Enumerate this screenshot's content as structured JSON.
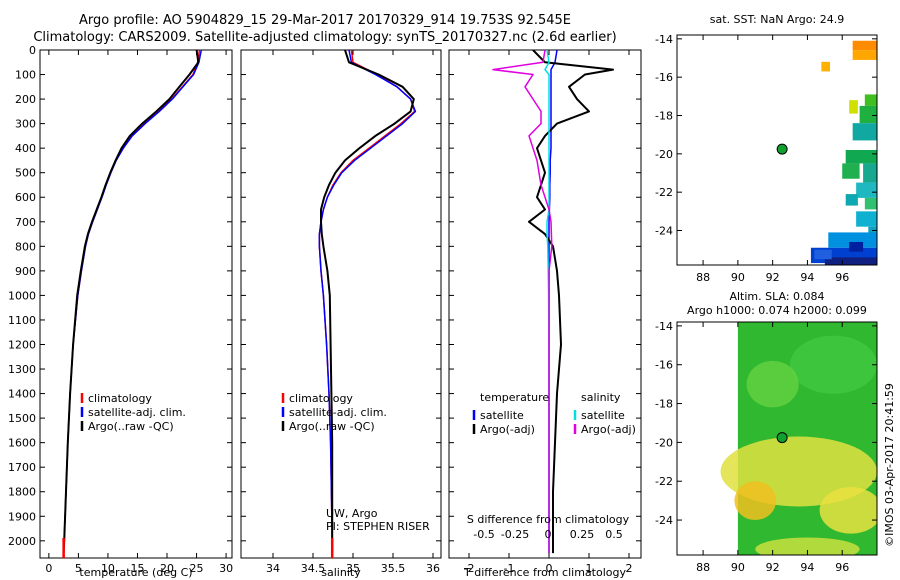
{
  "header": {
    "line1": "Argo profile: AO 5904829_15 29-Mar-2017 20170329_914 19.753S 92.545E",
    "line2": "Climatology: CARS2009. Satellite-adjusted climatology: synTS_20170327.nc (2.6d earlier)"
  },
  "colors": {
    "climatology": "#ff0000",
    "satellite": "#0000ff",
    "argo": "#000000",
    "salinity_sat": "#00e0e0",
    "salinity_argo": "#e000e0"
  },
  "chart_data": [
    {
      "type": "line",
      "xlabel": "temperature (deg C)",
      "xlim": [
        -1.5,
        31
      ],
      "xticks": [
        0,
        5,
        10,
        15,
        20,
        25,
        30
      ],
      "ylim": [
        0,
        2070
      ],
      "yticks": [
        0,
        100,
        200,
        300,
        400,
        500,
        600,
        700,
        800,
        900,
        1000,
        1100,
        1200,
        1300,
        1400,
        1500,
        1600,
        1700,
        1800,
        1900,
        2000
      ],
      "legend": [
        "climatology",
        "satellite-adj. clim.",
        "Argo(..raw -QC)"
      ],
      "depth": [
        0,
        50,
        100,
        150,
        200,
        250,
        300,
        350,
        400,
        450,
        500,
        550,
        600,
        650,
        700,
        750,
        800,
        900,
        1000,
        1200,
        1400,
        1600,
        1800,
        2000,
        2050
      ],
      "series": [
        {
          "name": "climatology",
          "color": "#ff0000",
          "values": [
            25.5,
            25.2,
            24.4,
            22.6,
            20.8,
            18.6,
            16.2,
            14.0,
            12.5,
            11.3,
            10.4,
            9.6,
            8.9,
            8.2,
            7.4,
            6.7,
            6.2,
            5.5,
            4.9,
            4.1,
            3.6,
            3.2,
            2.9,
            2.6,
            2.5
          ]
        },
        {
          "name": "satellite-adj. clim.",
          "color": "#0000ff",
          "values": [
            25.8,
            25.4,
            24.5,
            22.7,
            20.9,
            18.7,
            16.3,
            14.1,
            12.6,
            11.4,
            10.5,
            9.7,
            9.0,
            8.2,
            7.4,
            6.7,
            6.2,
            5.5,
            4.9,
            4.1,
            3.6,
            3.2,
            2.9,
            2.6,
            2.5
          ]
        },
        {
          "name": "Argo(..raw -QC)",
          "color": "#000000",
          "values": [
            25.0,
            25.3,
            23.8,
            22.1,
            20.4,
            18.2,
            15.8,
            13.7,
            12.3,
            11.3,
            10.4,
            9.6,
            8.9,
            8.1,
            7.3,
            6.6,
            6.1,
            5.4,
            4.8,
            4.1,
            3.6,
            3.2,
            2.9,
            2.6,
            2.5
          ]
        }
      ]
    },
    {
      "type": "line",
      "xlabel": "salinity",
      "xlim": [
        33.6,
        36.1
      ],
      "xticks": [
        34,
        34.5,
        35,
        35.5,
        36
      ],
      "ylim": [
        0,
        2070
      ],
      "legend": [
        "climatology",
        "satellite-adj. clim.",
        "Argo(..raw -QC)"
      ],
      "annotation": [
        "UW, Argo",
        "PI: STEPHEN RISER"
      ],
      "depth": [
        0,
        50,
        100,
        150,
        200,
        250,
        300,
        350,
        400,
        450,
        500,
        550,
        600,
        650,
        700,
        750,
        800,
        900,
        1000,
        1200,
        1400,
        1600,
        1800,
        2000,
        2050
      ],
      "series": [
        {
          "name": "climatology",
          "color": "#ff0000",
          "values": [
            34.98,
            35.0,
            35.3,
            35.55,
            35.72,
            35.77,
            35.6,
            35.4,
            35.2,
            35.0,
            34.85,
            34.75,
            34.68,
            34.63,
            34.6,
            34.58,
            34.58,
            34.6,
            34.63,
            34.67,
            34.7,
            34.72,
            34.73,
            34.74,
            34.74
          ]
        },
        {
          "name": "satellite-adj. clim.",
          "color": "#0000ff",
          "values": [
            34.95,
            34.98,
            35.28,
            35.55,
            35.72,
            35.78,
            35.62,
            35.42,
            35.22,
            35.02,
            34.86,
            34.76,
            34.68,
            34.63,
            34.6,
            34.58,
            34.58,
            34.6,
            34.63,
            34.67,
            34.7,
            34.72,
            34.73,
            34.74,
            34.74
          ]
        },
        {
          "name": "Argo(..raw -QC)",
          "color": "#000000",
          "values": [
            34.9,
            34.95,
            35.32,
            35.62,
            35.76,
            35.72,
            35.52,
            35.28,
            35.08,
            34.9,
            34.78,
            34.7,
            34.64,
            34.6,
            34.6,
            34.61,
            34.63,
            34.68,
            34.71,
            34.72,
            34.73,
            34.74,
            34.74,
            34.74,
            34.74
          ]
        }
      ]
    },
    {
      "type": "line",
      "xlabel": "T difference from climatology",
      "top_axis_label": "S difference from climatology",
      "xlim": [
        -2.5,
        2.3
      ],
      "xticks": [
        -2,
        -1,
        0,
        1,
        2
      ],
      "top_xticks": [
        "-0.5",
        "-0.25",
        "0",
        "0.25",
        "0.5"
      ],
      "ylim": [
        0,
        2070
      ],
      "legend_left_title": "temperature",
      "legend_right_title": "salinity",
      "legend_left": [
        "satellite",
        "Argo(-adj)"
      ],
      "legend_right": [
        "satellite",
        "Argo(-adj)"
      ],
      "depth": [
        0,
        50,
        80,
        100,
        150,
        200,
        250,
        300,
        350,
        400,
        450,
        500,
        550,
        600,
        650,
        700,
        750,
        800,
        900,
        1000,
        1200,
        1400,
        1600,
        1800,
        2000,
        2050
      ],
      "series": [
        {
          "name": "temperature satellite",
          "color": "#0000ff",
          "values": [
            0.2,
            0.15,
            0.05,
            0.05,
            0.05,
            0.05,
            0.05,
            0.05,
            0.05,
            0.05,
            0.03,
            0.03,
            0.02,
            0.02,
            0.01,
            0.0,
            0.0,
            0.0,
            0.0,
            0.0,
            0.0,
            0.0,
            0.0,
            0.0,
            0.0,
            0.0
          ]
        },
        {
          "name": "temperature Argo(-adj)",
          "color": "#000000",
          "values": [
            -0.4,
            -0.1,
            1.6,
            0.9,
            0.5,
            0.7,
            1.0,
            0.2,
            -0.1,
            -0.3,
            -0.2,
            -0.1,
            -0.2,
            -0.3,
            -0.1,
            -0.5,
            -0.1,
            0.1,
            0.2,
            0.25,
            0.3,
            0.2,
            0.15,
            0.1,
            0.1,
            0.1
          ]
        },
        {
          "name": "salinity satellite",
          "color": "#00e0e0",
          "values": [
            -0.05,
            0.0,
            -0.1,
            0.0,
            0.0,
            0.0,
            0.0,
            0.0,
            0.0,
            0.0,
            0.0,
            0.0,
            0.0,
            0.0,
            0.0,
            -0.05,
            -0.05,
            -0.03,
            -0.02,
            -0.01,
            0.0,
            0.0,
            0.0,
            0.0,
            0.0,
            0.0
          ]
        },
        {
          "name": "salinity Argo(-adj)",
          "color": "#e000e0",
          "values": [
            -0.1,
            -0.15,
            -1.4,
            -0.4,
            -0.6,
            -0.4,
            -0.2,
            -0.2,
            -0.5,
            -0.4,
            -0.3,
            -0.25,
            -0.2,
            -0.1,
            0.0,
            0.05,
            0.06,
            0.07,
            0.0,
            0.0,
            0.0,
            0.0,
            0.0,
            0.0,
            0.0,
            0.0
          ]
        }
      ]
    },
    {
      "type": "heatmap",
      "title": "sat. SST: NaN Argo: 24.9",
      "xlim": [
        86.5,
        98
      ],
      "ylim": [
        -25.8,
        -13.8
      ],
      "xticks": [
        88,
        90,
        92,
        94,
        96
      ],
      "yticks": [
        -14,
        -16,
        -18,
        -20,
        -22,
        -24
      ],
      "argo_position": [
        92.545,
        -19.753
      ],
      "cells": [
        {
          "x": 96.6,
          "y": -14.1,
          "w": 1.4,
          "h": 0.5,
          "c": "#ff8c00"
        },
        {
          "x": 96.6,
          "y": -14.6,
          "w": 1.4,
          "h": 0.5,
          "c": "#ffa600"
        },
        {
          "x": 94.8,
          "y": -15.2,
          "w": 0.5,
          "h": 0.5,
          "c": "#ffb000"
        },
        {
          "x": 97.3,
          "y": -16.9,
          "w": 0.7,
          "h": 0.6,
          "c": "#40c020"
        },
        {
          "x": 96.4,
          "y": -17.2,
          "w": 0.5,
          "h": 0.7,
          "c": "#d0e000"
        },
        {
          "x": 97.0,
          "y": -17.5,
          "w": 1.0,
          "h": 0.9,
          "c": "#20b040"
        },
        {
          "x": 96.6,
          "y": -18.4,
          "w": 1.4,
          "h": 0.9,
          "c": "#10a8a0"
        },
        {
          "x": 96.2,
          "y": -19.8,
          "w": 1.8,
          "h": 0.7,
          "c": "#10a850"
        },
        {
          "x": 96.0,
          "y": -20.5,
          "w": 1.0,
          "h": 0.8,
          "c": "#20b050"
        },
        {
          "x": 97.2,
          "y": -20.5,
          "w": 0.8,
          "h": 1.0,
          "c": "#18a890"
        },
        {
          "x": 96.8,
          "y": -21.5,
          "w": 1.2,
          "h": 0.8,
          "c": "#20b8c0"
        },
        {
          "x": 96.2,
          "y": -22.1,
          "w": 0.7,
          "h": 0.6,
          "c": "#10a8b0"
        },
        {
          "x": 97.3,
          "y": -22.3,
          "w": 0.7,
          "h": 0.6,
          "c": "#30c070"
        },
        {
          "x": 96.8,
          "y": -23.0,
          "w": 1.2,
          "h": 0.8,
          "c": "#10b0d0"
        },
        {
          "x": 97.5,
          "y": -23.8,
          "w": 0.5,
          "h": 0.7,
          "c": "#10a0c0"
        },
        {
          "x": 95.2,
          "y": -24.1,
          "w": 2.8,
          "h": 0.8,
          "c": "#0090e0"
        },
        {
          "x": 94.2,
          "y": -24.9,
          "w": 3.8,
          "h": 0.8,
          "c": "#0040d0"
        },
        {
          "x": 95.0,
          "y": -25.4,
          "w": 3.0,
          "h": 0.6,
          "c": "#102080"
        },
        {
          "x": 94.4,
          "y": -25.0,
          "w": 1.0,
          "h": 0.5,
          "c": "#2060e0"
        },
        {
          "x": 96.4,
          "y": -24.6,
          "w": 0.8,
          "h": 0.5,
          "c": "#0020a0"
        }
      ]
    },
    {
      "type": "heatmap",
      "title_line1": "Altim. SLA: 0.084",
      "title_line2": "Argo h1000: 0.074 h2000: 0.099",
      "xlim": [
        86.5,
        98
      ],
      "ylim": [
        -25.8,
        -13.8
      ],
      "xticks": [
        88,
        90,
        92,
        94,
        96
      ],
      "yticks": [
        -14,
        -16,
        -18,
        -20,
        -22,
        -24
      ],
      "data_xmin": 90,
      "argo_position": [
        92.545,
        -19.753
      ],
      "blobs": [
        {
          "x": 93.5,
          "y": -21.5,
          "rx": 4.5,
          "ry": 1.8,
          "c": "#e0e040"
        },
        {
          "x": 91.0,
          "y": -23.0,
          "rx": 1.2,
          "ry": 1.0,
          "c": "#f0c020"
        },
        {
          "x": 96.5,
          "y": -23.5,
          "rx": 1.8,
          "ry": 1.2,
          "c": "#e8e040"
        },
        {
          "x": 94.0,
          "y": -25.5,
          "rx": 3.0,
          "ry": 0.6,
          "c": "#c8e040"
        },
        {
          "x": 95.5,
          "y": -16.0,
          "rx": 2.5,
          "ry": 1.5,
          "c": "#40c840"
        },
        {
          "x": 92.0,
          "y": -17.0,
          "rx": 1.5,
          "ry": 1.2,
          "c": "#60d040"
        }
      ]
    }
  ],
  "side_text": "©IMOS 03-Apr-2017 20:41:59"
}
